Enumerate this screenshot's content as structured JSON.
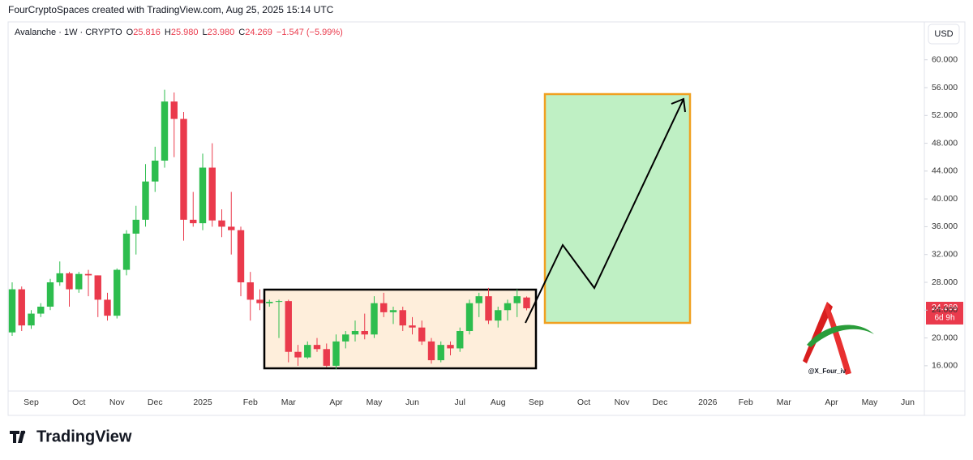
{
  "header": {
    "credit": "FourCryptoSpaces created with TradingView.com, Aug 25, 2025 15:14 UTC"
  },
  "legend": {
    "symbol": "Avalanche · 1W · CRYPTO",
    "ohlc": [
      {
        "label": "O",
        "value": "25.816"
      },
      {
        "label": "H",
        "value": "25.980"
      },
      {
        "label": "L",
        "value": "23.980"
      },
      {
        "label": "C",
        "value": "24.269"
      }
    ],
    "change": "−1.547 (−5.99%)"
  },
  "currency_button": "USD",
  "price_tag": {
    "price": "24.269",
    "countdown": "6d 9h"
  },
  "watermark": "@X_Four_iv",
  "brand": "TradingView",
  "chart_data": {
    "type": "candlestick",
    "categories": [
      null,
      null,
      "Sep",
      null,
      null,
      null,
      null,
      "Oct",
      null,
      null,
      null,
      "Nov",
      null,
      null,
      null,
      "Dec",
      null,
      null,
      null,
      null,
      "2025",
      null,
      null,
      null,
      null,
      "Feb",
      null,
      null,
      null,
      "Mar",
      null,
      null,
      null,
      null,
      "Apr",
      null,
      null,
      null,
      "May",
      null,
      null,
      null,
      "Jun",
      null,
      null,
      null,
      null,
      "Jul",
      null,
      null,
      null,
      "Aug",
      null,
      null,
      null,
      "Sep",
      null,
      null,
      null,
      null,
      "Oct",
      null,
      null,
      null,
      "Nov",
      null,
      null,
      null,
      "Dec",
      null,
      null,
      null,
      null,
      "2026",
      null,
      null,
      null,
      "Feb",
      null,
      null,
      null,
      "Mar",
      null,
      null,
      null,
      null,
      "Apr",
      null,
      null,
      null,
      "May",
      null,
      null,
      null,
      "Jun",
      null
    ],
    "open": [
      20.8,
      27.0,
      21.8,
      23.5,
      24.5,
      28.0,
      29.3,
      27.0,
      29.2,
      29.0,
      25.5,
      23.2,
      29.8,
      35.0,
      37.0,
      42.5,
      45.5,
      54.0,
      51.5,
      37.0,
      36.5,
      44.5,
      36.9,
      36.0,
      35.5,
      28.0,
      25.5,
      25.0,
      25.2,
      25.3,
      18.0,
      17.2,
      19.0,
      18.4,
      16.0,
      19.5,
      20.5,
      21.0,
      20.5,
      25.0,
      23.7,
      24.0,
      21.8,
      21.5,
      19.5,
      16.8,
      19.0,
      18.5,
      21.0,
      25.0,
      26.0,
      22.5,
      24.0,
      25.0,
      25.816,
      null,
      null,
      null,
      null,
      null,
      null,
      null,
      null,
      null,
      null,
      null,
      null,
      null,
      null,
      null,
      null,
      null,
      null,
      null,
      null,
      null,
      null,
      null,
      null,
      null,
      null,
      null,
      null,
      null,
      null,
      null,
      null,
      null,
      null,
      null,
      null,
      null,
      null,
      null,
      null,
      null
    ],
    "high": [
      28.0,
      27.4,
      24.0,
      25.0,
      28.5,
      31.0,
      29.5,
      29.5,
      29.8,
      29.0,
      26.5,
      30.0,
      35.5,
      39.0,
      45.0,
      47.5,
      55.7,
      55.3,
      52.5,
      41.0,
      46.5,
      48.0,
      38.5,
      41.0,
      36.0,
      29.5,
      27.0,
      25.5,
      25.5,
      25.5,
      19.0,
      19.5,
      20.0,
      19.2,
      20.5,
      21.0,
      22.5,
      23.5,
      26.0,
      26.5,
      24.5,
      24.5,
      23.0,
      22.5,
      20.0,
      19.5,
      19.5,
      21.5,
      25.5,
      26.5,
      27.2,
      24.5,
      25.5,
      27.0,
      25.98,
      null,
      null,
      null,
      null,
      null,
      null,
      null,
      null,
      null,
      null,
      null,
      null,
      null,
      null,
      null,
      null,
      null,
      null,
      null,
      null,
      null,
      null,
      null,
      null,
      null,
      null,
      null,
      null,
      null,
      null,
      null,
      null,
      null,
      null,
      null,
      null,
      null,
      null,
      null,
      null,
      null
    ],
    "low": [
      20.3,
      21.0,
      21.3,
      23.0,
      24.0,
      27.5,
      24.5,
      26.5,
      26.0,
      23.0,
      22.5,
      22.8,
      29.0,
      32.0,
      36.0,
      41.0,
      44.5,
      46.0,
      34.0,
      36.0,
      35.5,
      36.0,
      34.5,
      32.0,
      26.0,
      22.5,
      24.0,
      24.5,
      20.0,
      16.5,
      16.0,
      17.0,
      18.0,
      15.8,
      15.5,
      18.5,
      19.5,
      19.8,
      20.0,
      23.0,
      22.0,
      21.0,
      20.5,
      19.0,
      16.3,
      16.5,
      17.5,
      18.0,
      20.5,
      23.0,
      22.0,
      21.5,
      22.5,
      23.0,
      23.98,
      null,
      null,
      null,
      null,
      null,
      null,
      null,
      null,
      null,
      null,
      null,
      null,
      null,
      null,
      null,
      null,
      null,
      null,
      null,
      null,
      null,
      null,
      null,
      null,
      null,
      null,
      null,
      null,
      null,
      null,
      null,
      null,
      null,
      null,
      null,
      null,
      null,
      null,
      null,
      null,
      null
    ],
    "close": [
      27.0,
      21.8,
      23.5,
      24.5,
      28.0,
      29.3,
      27.0,
      29.2,
      29.0,
      25.5,
      23.2,
      29.8,
      35.0,
      37.0,
      42.5,
      45.5,
      54.0,
      51.5,
      37.0,
      36.5,
      44.5,
      36.9,
      36.0,
      35.5,
      28.0,
      25.5,
      25.0,
      25.2,
      25.3,
      18.0,
      17.2,
      19.0,
      18.4,
      16.0,
      19.5,
      20.5,
      21.0,
      20.5,
      25.0,
      23.7,
      24.0,
      21.8,
      21.5,
      19.5,
      16.8,
      19.0,
      18.5,
      21.0,
      25.0,
      26.0,
      22.5,
      24.0,
      25.0,
      26.0,
      24.269,
      null,
      null,
      null,
      null,
      null,
      null,
      null,
      null,
      null,
      null,
      null,
      null,
      null,
      null,
      null,
      null,
      null,
      null,
      null,
      null,
      null,
      null,
      null,
      null,
      null,
      null,
      null,
      null,
      null,
      null,
      null,
      null,
      null,
      null,
      null,
      null,
      null,
      null,
      null,
      null,
      null
    ],
    "up_color": "#2dbd4e",
    "down_color": "#ea3a4c",
    "ylim": [
      12.6,
      65.1
    ],
    "yticks": [
      {
        "value": 16,
        "label": "16.000"
      },
      {
        "value": 20,
        "label": "20.000"
      },
      {
        "value": 24,
        "label": "24.000"
      },
      {
        "value": 28,
        "label": "28.000"
      },
      {
        "value": 32,
        "label": "32.000"
      },
      {
        "value": 36,
        "label": "36.000"
      },
      {
        "value": 40,
        "label": "40.000"
      },
      {
        "value": 44,
        "label": "44.000"
      },
      {
        "value": 48,
        "label": "48.000"
      },
      {
        "value": 52,
        "label": "52.000"
      },
      {
        "value": 56,
        "label": "56.000"
      },
      {
        "value": 60,
        "label": "60.000"
      }
    ],
    "grid": false
  }
}
